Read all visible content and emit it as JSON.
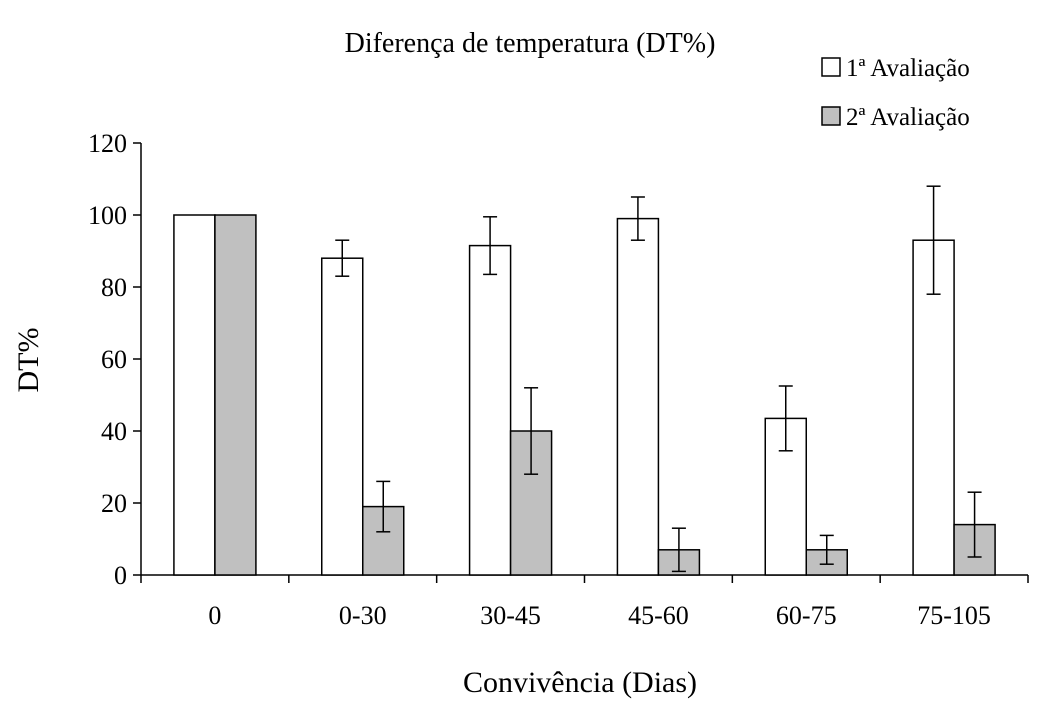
{
  "chart_data": {
    "type": "bar",
    "title": "Diferença de temperatura (DT%)",
    "xlabel": "Convivência (Dias)",
    "ylabel": "DT%",
    "ylim": [
      0,
      120
    ],
    "yticks": [
      0,
      20,
      40,
      60,
      80,
      100,
      120
    ],
    "categories": [
      "0",
      "0-30",
      "30-45",
      "45-60",
      "60-75",
      "75-105"
    ],
    "series": [
      {
        "name": "1ª Avaliação",
        "color": "#ffffff",
        "values": [
          100,
          88,
          91.5,
          99,
          43.5,
          93
        ],
        "error": [
          0,
          5,
          8,
          6,
          9,
          15
        ]
      },
      {
        "name": "2ª Avaliação",
        "color": "#c0c0c0",
        "values": [
          100,
          19,
          40,
          7,
          7,
          14
        ],
        "error": [
          0,
          7,
          12,
          6,
          4,
          9
        ]
      }
    ],
    "legend_position": "top-right",
    "grid": false
  }
}
